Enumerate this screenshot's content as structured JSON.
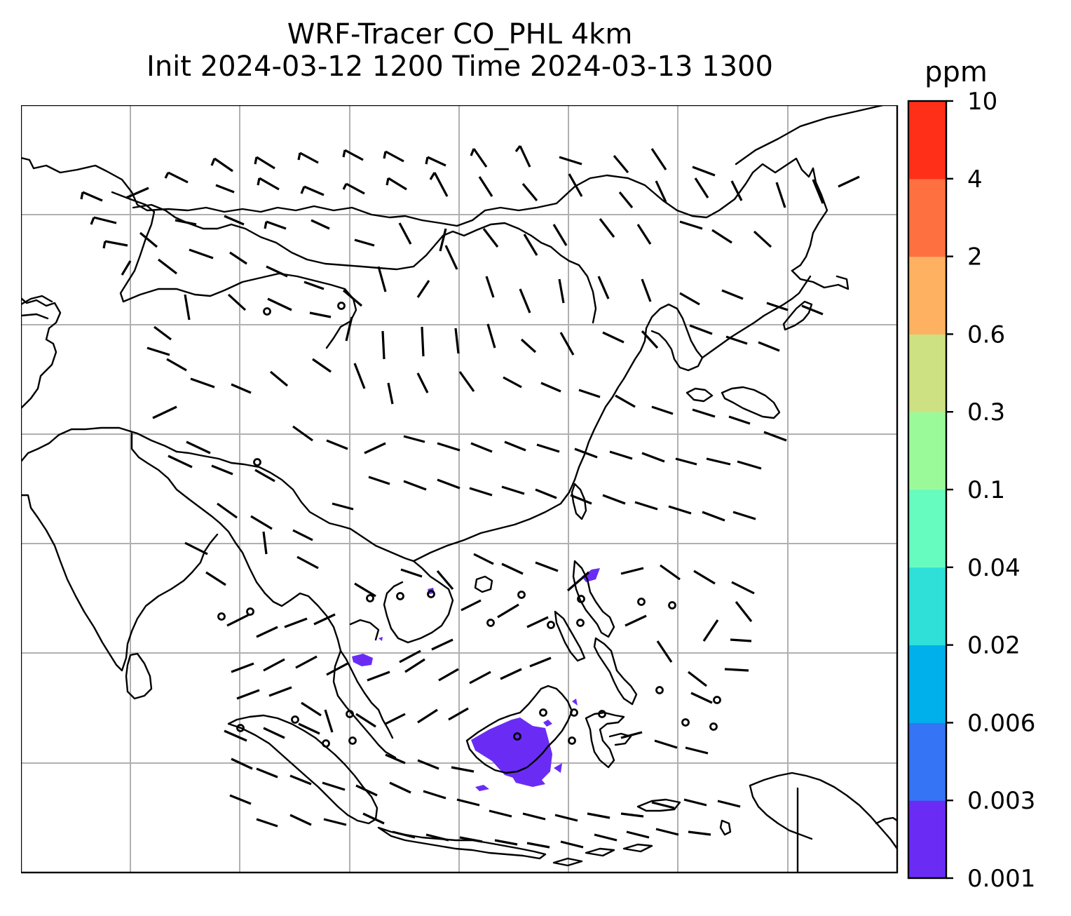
{
  "title": {
    "line1": "WRF-Tracer CO_PHL 4km",
    "line2": "Init 2024-03-12 1200 Time 2024-03-13 1300"
  },
  "map": {
    "gridlines": true,
    "gridline_color": "#b0b0b0",
    "coastline_color": "#000000",
    "tracer_color": "#6a2cf5"
  },
  "colorbar": {
    "unit": "ppm",
    "levels": [
      "0.001",
      "0.003",
      "0.006",
      "0.02",
      "0.04",
      "0.1",
      "0.3",
      "0.6",
      "2",
      "4",
      "10"
    ],
    "colors": [
      "#6a2cf5",
      "#3574f4",
      "#00b0ea",
      "#2ee0d8",
      "#66fbbf",
      "#9afa9a",
      "#cde182",
      "#feb160",
      "#fe7040",
      "#ff2f18"
    ]
  }
}
